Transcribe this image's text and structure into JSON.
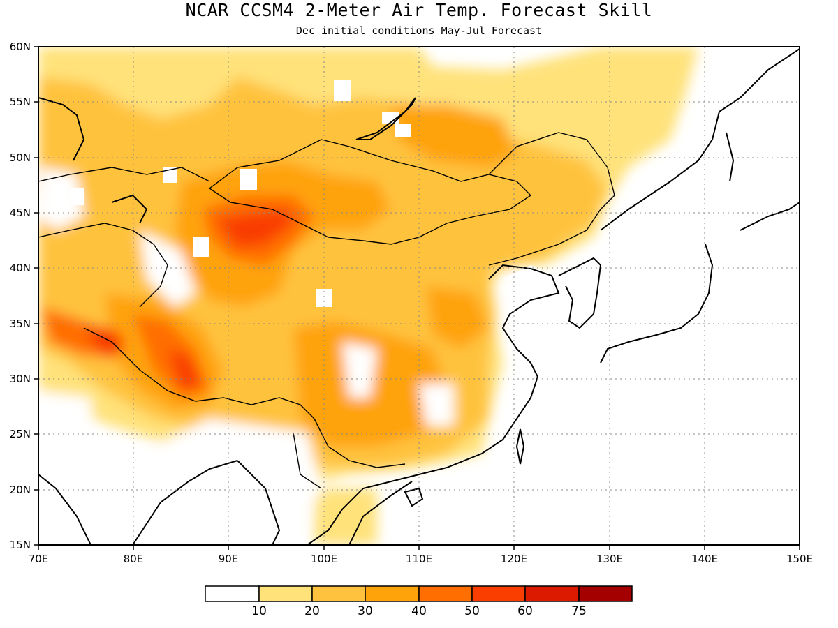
{
  "title": "NCAR_CCSM4 2-Meter Air Temp. Forecast Skill",
  "subtitle": "Dec initial conditions   May-Jul Forecast",
  "map": {
    "lon_range": [
      70,
      150
    ],
    "lat_range": [
      15,
      60
    ],
    "lon_ticks": [
      "70E",
      "80E",
      "90E",
      "100E",
      "110E",
      "120E",
      "130E",
      "140E",
      "150E"
    ],
    "lat_ticks": [
      "15N",
      "20N",
      "25N",
      "30N",
      "35N",
      "40N",
      "45N",
      "50N",
      "55N",
      "60N"
    ],
    "gridlines": "dotted"
  },
  "colorbar": {
    "colors": [
      "#ffffff",
      "#ffe27a",
      "#ffc23e",
      "#ffa30a",
      "#ff6e00",
      "#f93e00",
      "#dc1a00",
      "#a50000"
    ],
    "labels": [
      "10",
      "20",
      "30",
      "40",
      "50",
      "60",
      "75"
    ]
  }
}
